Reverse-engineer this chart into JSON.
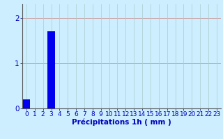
{
  "hours": [
    0,
    1,
    2,
    3,
    4,
    5,
    6,
    7,
    8,
    9,
    10,
    11,
    12,
    13,
    14,
    15,
    16,
    17,
    18,
    19,
    20,
    21,
    22,
    23
  ],
  "values": [
    0.2,
    0.0,
    0.0,
    1.7,
    0.0,
    0.0,
    0.0,
    0.0,
    0.0,
    0.0,
    0.0,
    0.0,
    0.0,
    0.0,
    0.0,
    0.0,
    0.0,
    0.0,
    0.0,
    0.0,
    0.0,
    0.0,
    0.0,
    0.0
  ],
  "bar_color": "#0000ee",
  "background_color": "#cceeff",
  "hgrid_color": "#cc9999",
  "vgrid_color": "#aacccc",
  "xlabel": "Précipitations 1h ( mm )",
  "xlabel_color": "#0000bb",
  "tick_color": "#0000bb",
  "axis_color": "#555555",
  "yticks": [
    0,
    1,
    2
  ],
  "ylim": [
    0,
    2.3
  ],
  "xlim": [
    -0.5,
    23.5
  ],
  "bar_width": 0.85,
  "xlabel_fontsize": 7.5,
  "tick_fontsize": 6.5,
  "ytick_fontsize": 7.5
}
